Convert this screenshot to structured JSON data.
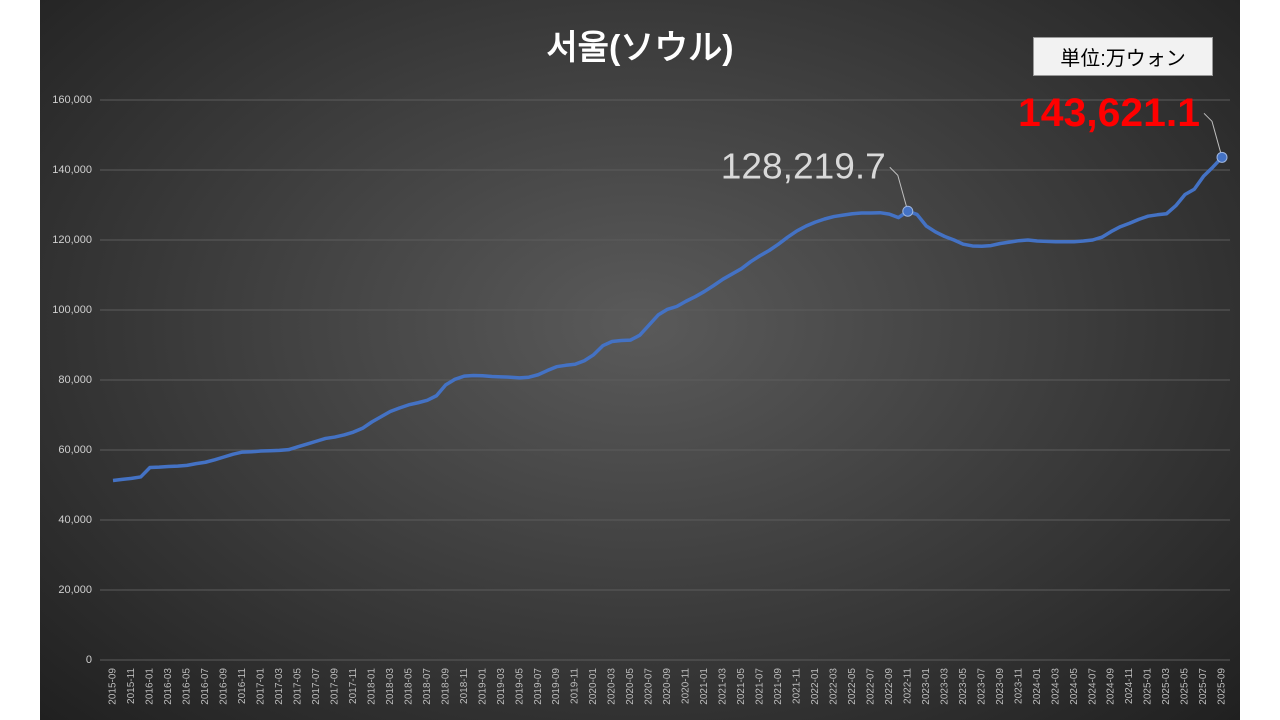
{
  "chart_data": {
    "type": "line",
    "title": "서울(ソウル)",
    "unit_label": "単位:万ウォン",
    "color": "#4472c4",
    "grid": true,
    "categories": [
      "2015-09",
      null,
      "2015-11",
      null,
      "2016-01",
      null,
      "2016-03",
      null,
      "2016-05",
      null,
      "2016-07",
      null,
      "2016-09",
      null,
      "2016-11",
      null,
      "2017-01",
      null,
      "2017-03",
      null,
      "2017-05",
      null,
      "2017-07",
      null,
      "2017-09",
      null,
      "2017-11",
      null,
      "2018-01",
      null,
      "2018-03",
      null,
      "2018-05",
      null,
      "2018-07",
      null,
      "2018-09",
      null,
      "2018-11",
      null,
      "2019-01",
      null,
      "2019-03",
      null,
      "2019-05",
      null,
      "2019-07",
      null,
      "2019-09",
      null,
      "2019-11",
      null,
      "2020-01",
      null,
      "2020-03",
      null,
      "2020-05",
      null,
      "2020-07",
      null,
      "2020-09",
      null,
      "2020-11",
      null,
      "2021-01",
      null,
      "2021-03",
      null,
      "2021-05",
      null,
      "2021-07",
      null,
      "2021-09",
      null,
      "2021-11",
      null,
      "2022-01",
      null,
      "2022-03",
      null,
      "2022-05",
      null,
      "2022-07",
      null,
      "2022-09",
      null,
      "2022-11",
      null,
      "2023-01",
      null,
      "2023-03",
      null,
      "2023-05",
      null,
      "2023-07",
      null,
      "2023-09",
      null,
      "2023-11",
      null,
      "2024-01",
      null,
      "2024-03",
      null,
      "2024-05",
      null,
      "2024-07",
      null,
      "2024-09",
      null,
      "2024-11",
      null,
      "2025-01",
      null,
      "2025-03",
      null,
      "2025-05",
      null,
      "2025-07",
      null,
      "2025-09"
    ],
    "values": [
      51300,
      51600,
      51900,
      52300,
      55000,
      55100,
      55300,
      55400,
      55600,
      56100,
      56500,
      57200,
      58000,
      58800,
      59400,
      59500,
      59700,
      59800,
      59900,
      60100,
      60900,
      61700,
      62500,
      63300,
      63700,
      64300,
      65100,
      66200,
      68000,
      69500,
      71000,
      72000,
      72900,
      73500,
      74200,
      75500,
      78600,
      80200,
      81100,
      81300,
      81200,
      81000,
      80900,
      80800,
      80600,
      80800,
      81500,
      82700,
      83800,
      84200,
      84500,
      85500,
      87200,
      89800,
      91000,
      91300,
      91400,
      92800,
      95700,
      98600,
      100200,
      101000,
      102500,
      103800,
      105300,
      107000,
      108800,
      110300,
      111800,
      113800,
      115500,
      117000,
      118800,
      120800,
      122600,
      124000,
      125100,
      126000,
      126700,
      127100,
      127500,
      127700,
      127700,
      127800,
      127400,
      126400,
      128219.7,
      127300,
      124000,
      122300,
      121000,
      120000,
      118800,
      118300,
      118200,
      118400,
      119000,
      119400,
      119800,
      120000,
      119700,
      119600,
      119500,
      119500,
      119500,
      119700,
      120000,
      120800,
      122400,
      123800,
      124800,
      125900,
      126800,
      127200,
      127500,
      129800,
      133000,
      134500,
      138200,
      140800,
      143621.1
    ],
    "value_labels": [
      null,
      null,
      null,
      null,
      null,
      null,
      null,
      null,
      null,
      null,
      null,
      null,
      null,
      null,
      null,
      null,
      null,
      null,
      null,
      null,
      null,
      null,
      null,
      null,
      null,
      null,
      null,
      null,
      null,
      null,
      null,
      null,
      null,
      null,
      null,
      null,
      null,
      null,
      null,
      null,
      null,
      null,
      null,
      null,
      null,
      null,
      null,
      null,
      null,
      null,
      null,
      null,
      null,
      null,
      null,
      null,
      null,
      null,
      null,
      null,
      null,
      null,
      null,
      null,
      null,
      null,
      null,
      null,
      null,
      null,
      null,
      null,
      null,
      null,
      null,
      null,
      null,
      null,
      null,
      null,
      null,
      null,
      null,
      null,
      null,
      null,
      "128,219.7",
      null,
      null,
      null,
      null,
      null,
      null,
      null,
      null,
      null,
      null,
      null,
      null,
      null,
      null,
      null,
      null,
      null,
      null,
      null,
      null,
      null,
      null,
      null,
      null,
      null,
      null,
      null,
      null,
      null,
      null,
      null,
      null,
      null,
      "143,621.1"
    ],
    "ylim": [
      0,
      160000
    ],
    "yticks": [
      0,
      {
        "value": 20000,
        "label": "20,000"
      },
      {
        "value": 40000,
        "label": "40,000"
      },
      {
        "value": 60000,
        "label": "60,000"
      },
      {
        "value": 80000,
        "label": "80,000"
      },
      {
        "value": 100000,
        "label": "100,000"
      },
      {
        "value": 120000,
        "label": "120,000"
      },
      {
        "value": 140000,
        "label": "140,000"
      },
      {
        "value": 160000,
        "label": "160,000"
      }
    ]
  }
}
